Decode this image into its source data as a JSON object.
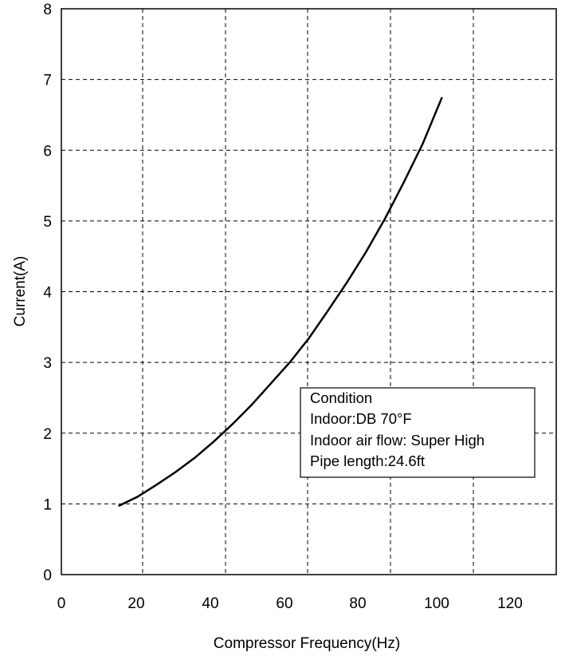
{
  "chart_data": {
    "type": "line",
    "xlabel": "Compressor Frequency(Hz)",
    "ylabel": "Current(A)",
    "xlim": [
      0,
      130
    ],
    "ylim": [
      0,
      8
    ],
    "x_ticks": [
      "0",
      "20",
      "40",
      "60",
      "80",
      "100",
      "120"
    ],
    "y_ticks": [
      "0",
      "1",
      "2",
      "3",
      "4",
      "5",
      "6",
      "7",
      "8"
    ],
    "grid": "dashed",
    "series": [
      {
        "x": [
          15,
          20,
          25,
          30,
          35,
          40,
          45,
          50,
          55,
          60,
          65,
          70,
          75,
          80,
          85,
          90,
          95,
          100
        ],
        "y": [
          0.97,
          1.1,
          1.27,
          1.45,
          1.65,
          1.88,
          2.13,
          2.4,
          2.7,
          3.0,
          3.34,
          3.73,
          4.13,
          4.56,
          5.03,
          5.55,
          6.1,
          6.75
        ]
      }
    ],
    "annotation": {
      "lines": [
        "Condition",
        "Indoor:DB 70°F",
        "Indoor air flow: Super High",
        "Pipe length:24.6ft"
      ],
      "placement": "center-right"
    }
  }
}
